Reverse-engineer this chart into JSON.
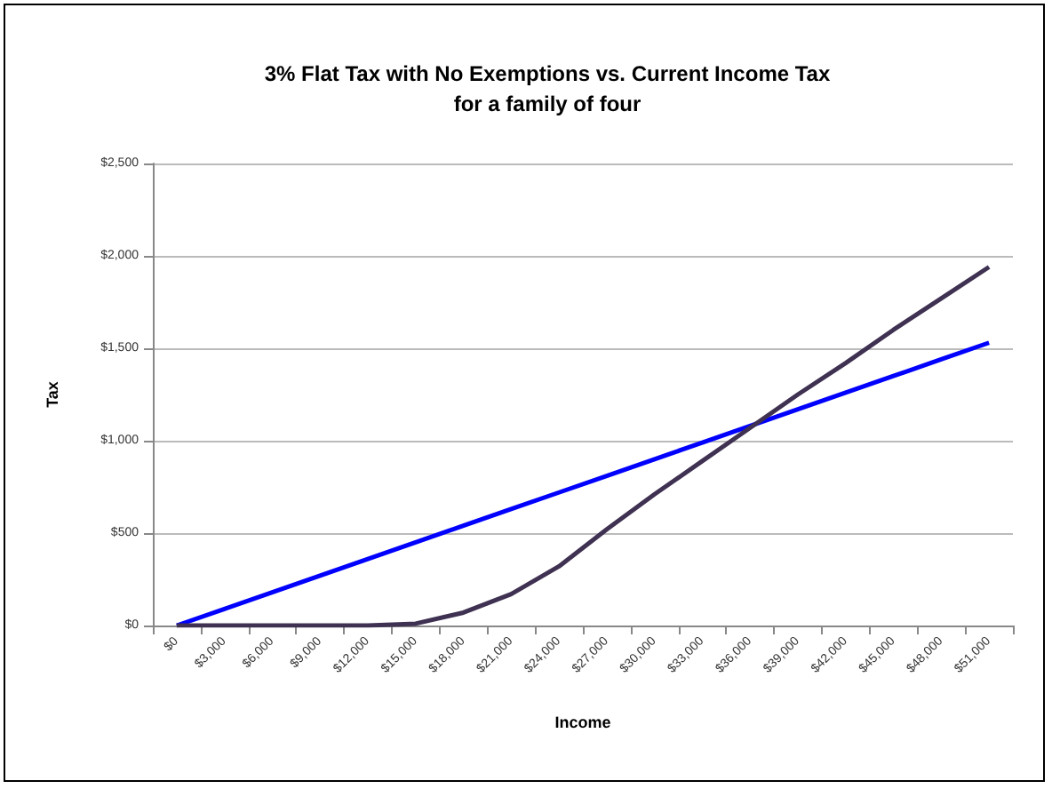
{
  "chart_data": {
    "type": "line",
    "title": "3% Flat Tax with No Exemptions vs. Current Income Tax\nfor a family of four",
    "xlabel": "Income",
    "ylabel": "Tax",
    "categories": [
      "$0",
      "$3,000",
      "$6,000",
      "$9,000",
      "$12,000",
      "$15,000",
      "$18,000",
      "$21,000",
      "$24,000",
      "$27,000",
      "$30,000",
      "$33,000",
      "$36,000",
      "$39,000",
      "$42,000",
      "$45,000",
      "$48,000",
      "$51,000"
    ],
    "series": [
      {
        "color": "#0000ff",
        "values": [
          0,
          90,
          180,
          270,
          360,
          450,
          540,
          630,
          720,
          810,
          900,
          990,
          1080,
          1170,
          1260,
          1350,
          1440,
          1530
        ]
      },
      {
        "color": "#3f3151",
        "values": [
          0,
          0,
          0,
          0,
          0,
          10,
          70,
          170,
          320,
          520,
          710,
          890,
          1070,
          1250,
          1420,
          1600,
          1770,
          1940
        ]
      }
    ],
    "ylim": [
      0,
      2500
    ],
    "yticks": [
      {
        "value": 0,
        "label": "$0"
      },
      {
        "value": 500,
        "label": "$500"
      },
      {
        "value": 1000,
        "label": "$1,000"
      },
      {
        "value": 1500,
        "label": "$1,500"
      },
      {
        "value": 2000,
        "label": "$2,000"
      },
      {
        "value": 2500,
        "label": "$2,500"
      }
    ],
    "grid": "y",
    "marker": "none",
    "line_style": "solid"
  }
}
